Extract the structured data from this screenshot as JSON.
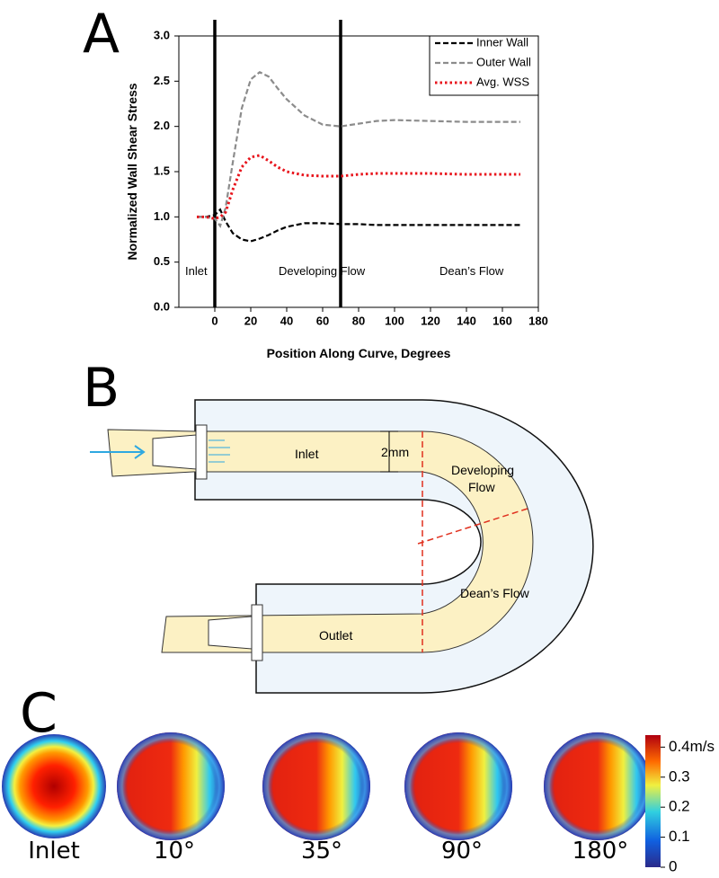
{
  "panel_labels": {
    "a": "A",
    "b": "B",
    "c": "C"
  },
  "chart_data": {
    "type": "line",
    "ylabel": "Normalized Wall Shear Stress",
    "xlabel": "Position Along Curve, Degrees",
    "x": [
      -10,
      -5,
      0,
      3,
      6,
      10,
      15,
      20,
      25,
      30,
      35,
      40,
      50,
      60,
      70,
      80,
      90,
      100,
      120,
      140,
      170
    ],
    "series": [
      {
        "name": "Inner Wall",
        "color": "#000000",
        "style": "dashed",
        "values": [
          1.0,
          1.0,
          1.02,
          1.08,
          0.95,
          0.82,
          0.75,
          0.73,
          0.76,
          0.8,
          0.85,
          0.89,
          0.93,
          0.93,
          0.92,
          0.92,
          0.91,
          0.91,
          0.91,
          0.91,
          0.91
        ]
      },
      {
        "name": "Outer Wall",
        "color": "#8c8c8c",
        "style": "dashed",
        "values": [
          1.0,
          1.0,
          0.98,
          0.9,
          1.1,
          1.6,
          2.2,
          2.52,
          2.6,
          2.55,
          2.42,
          2.3,
          2.12,
          2.02,
          2.0,
          2.03,
          2.06,
          2.07,
          2.06,
          2.05,
          2.05
        ]
      },
      {
        "name": "Avg. WSS",
        "color": "#e8141c",
        "style": "dotted",
        "values": [
          1.0,
          1.0,
          0.98,
          1.0,
          1.05,
          1.3,
          1.55,
          1.66,
          1.68,
          1.62,
          1.55,
          1.5,
          1.46,
          1.45,
          1.45,
          1.47,
          1.48,
          1.48,
          1.48,
          1.47,
          1.47
        ]
      }
    ],
    "xlim": [
      -20,
      180
    ],
    "xticks": [
      0,
      20,
      40,
      60,
      80,
      100,
      120,
      140,
      160,
      180
    ],
    "ylim": [
      0,
      3
    ],
    "yticks": [
      {
        "value": 0,
        "label": "0.0"
      },
      0.5,
      {
        "value": 1,
        "label": "1.0"
      },
      1.5,
      {
        "value": 2,
        "label": "2.0"
      },
      2.5,
      {
        "value": 3,
        "label": "3.0"
      }
    ],
    "grid": false,
    "legend": "upper right",
    "boundaries": [
      0,
      70
    ],
    "annotations": [
      "Inlet",
      "Developing Flow",
      "Dean’s Flow"
    ]
  },
  "diagram": {
    "inlet": "Inlet",
    "width": "2mm",
    "developing": [
      "Developing",
      "Flow"
    ],
    "deans": "Dean’s Flow",
    "outlet": "Outlet"
  },
  "contours": {
    "sections": [
      "Inlet",
      "10°",
      "35°",
      "90°",
      "180°"
    ],
    "colorbar": {
      "lim": [
        0,
        0.44
      ],
      "ticks": [
        0,
        0.1,
        0.2,
        0.3,
        {
          "value": 0.4,
          "label": "0.4m/s"
        }
      ]
    }
  }
}
